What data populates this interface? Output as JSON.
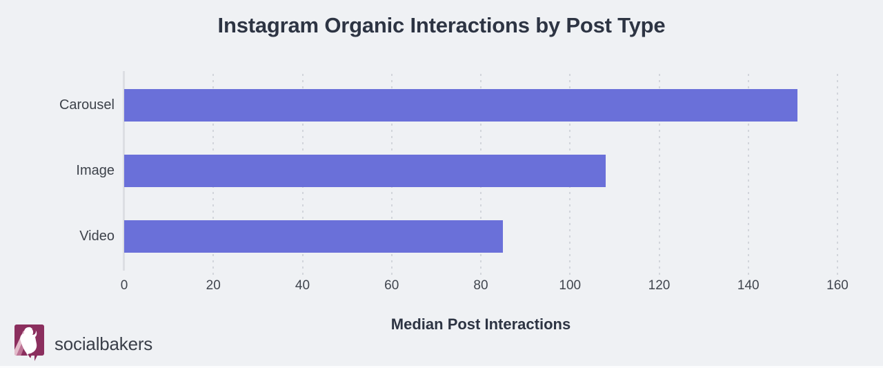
{
  "chart_data": {
    "type": "bar",
    "orientation": "horizontal",
    "title": "Instagram Organic Interactions by Post Type",
    "categories": [
      "Carousel",
      "Image",
      "Video"
    ],
    "values": [
      151,
      108,
      85
    ],
    "xlabel": "Median Post Interactions",
    "ylabel": "",
    "xlim": [
      0,
      160
    ],
    "xticks": [
      0,
      20,
      40,
      60,
      80,
      100,
      120,
      140,
      160
    ],
    "grid": "vertical-dotted",
    "legend": "none",
    "bar_color": "#6a70d9"
  },
  "footer": {
    "brand": "socialbakers"
  },
  "colors": {
    "background": "#eff1f4",
    "bar": "#6a70d9",
    "title_text": "#2d3443",
    "category_text": "#3d424a",
    "tick_text": "#40454e",
    "gridline": "#d2d5db",
    "axis_line": "#dcdee3",
    "logo_plum": "#8b2f5e",
    "logo_stripe_light": "#e3bccb",
    "logo_stripe_mid": "#bd7495"
  }
}
